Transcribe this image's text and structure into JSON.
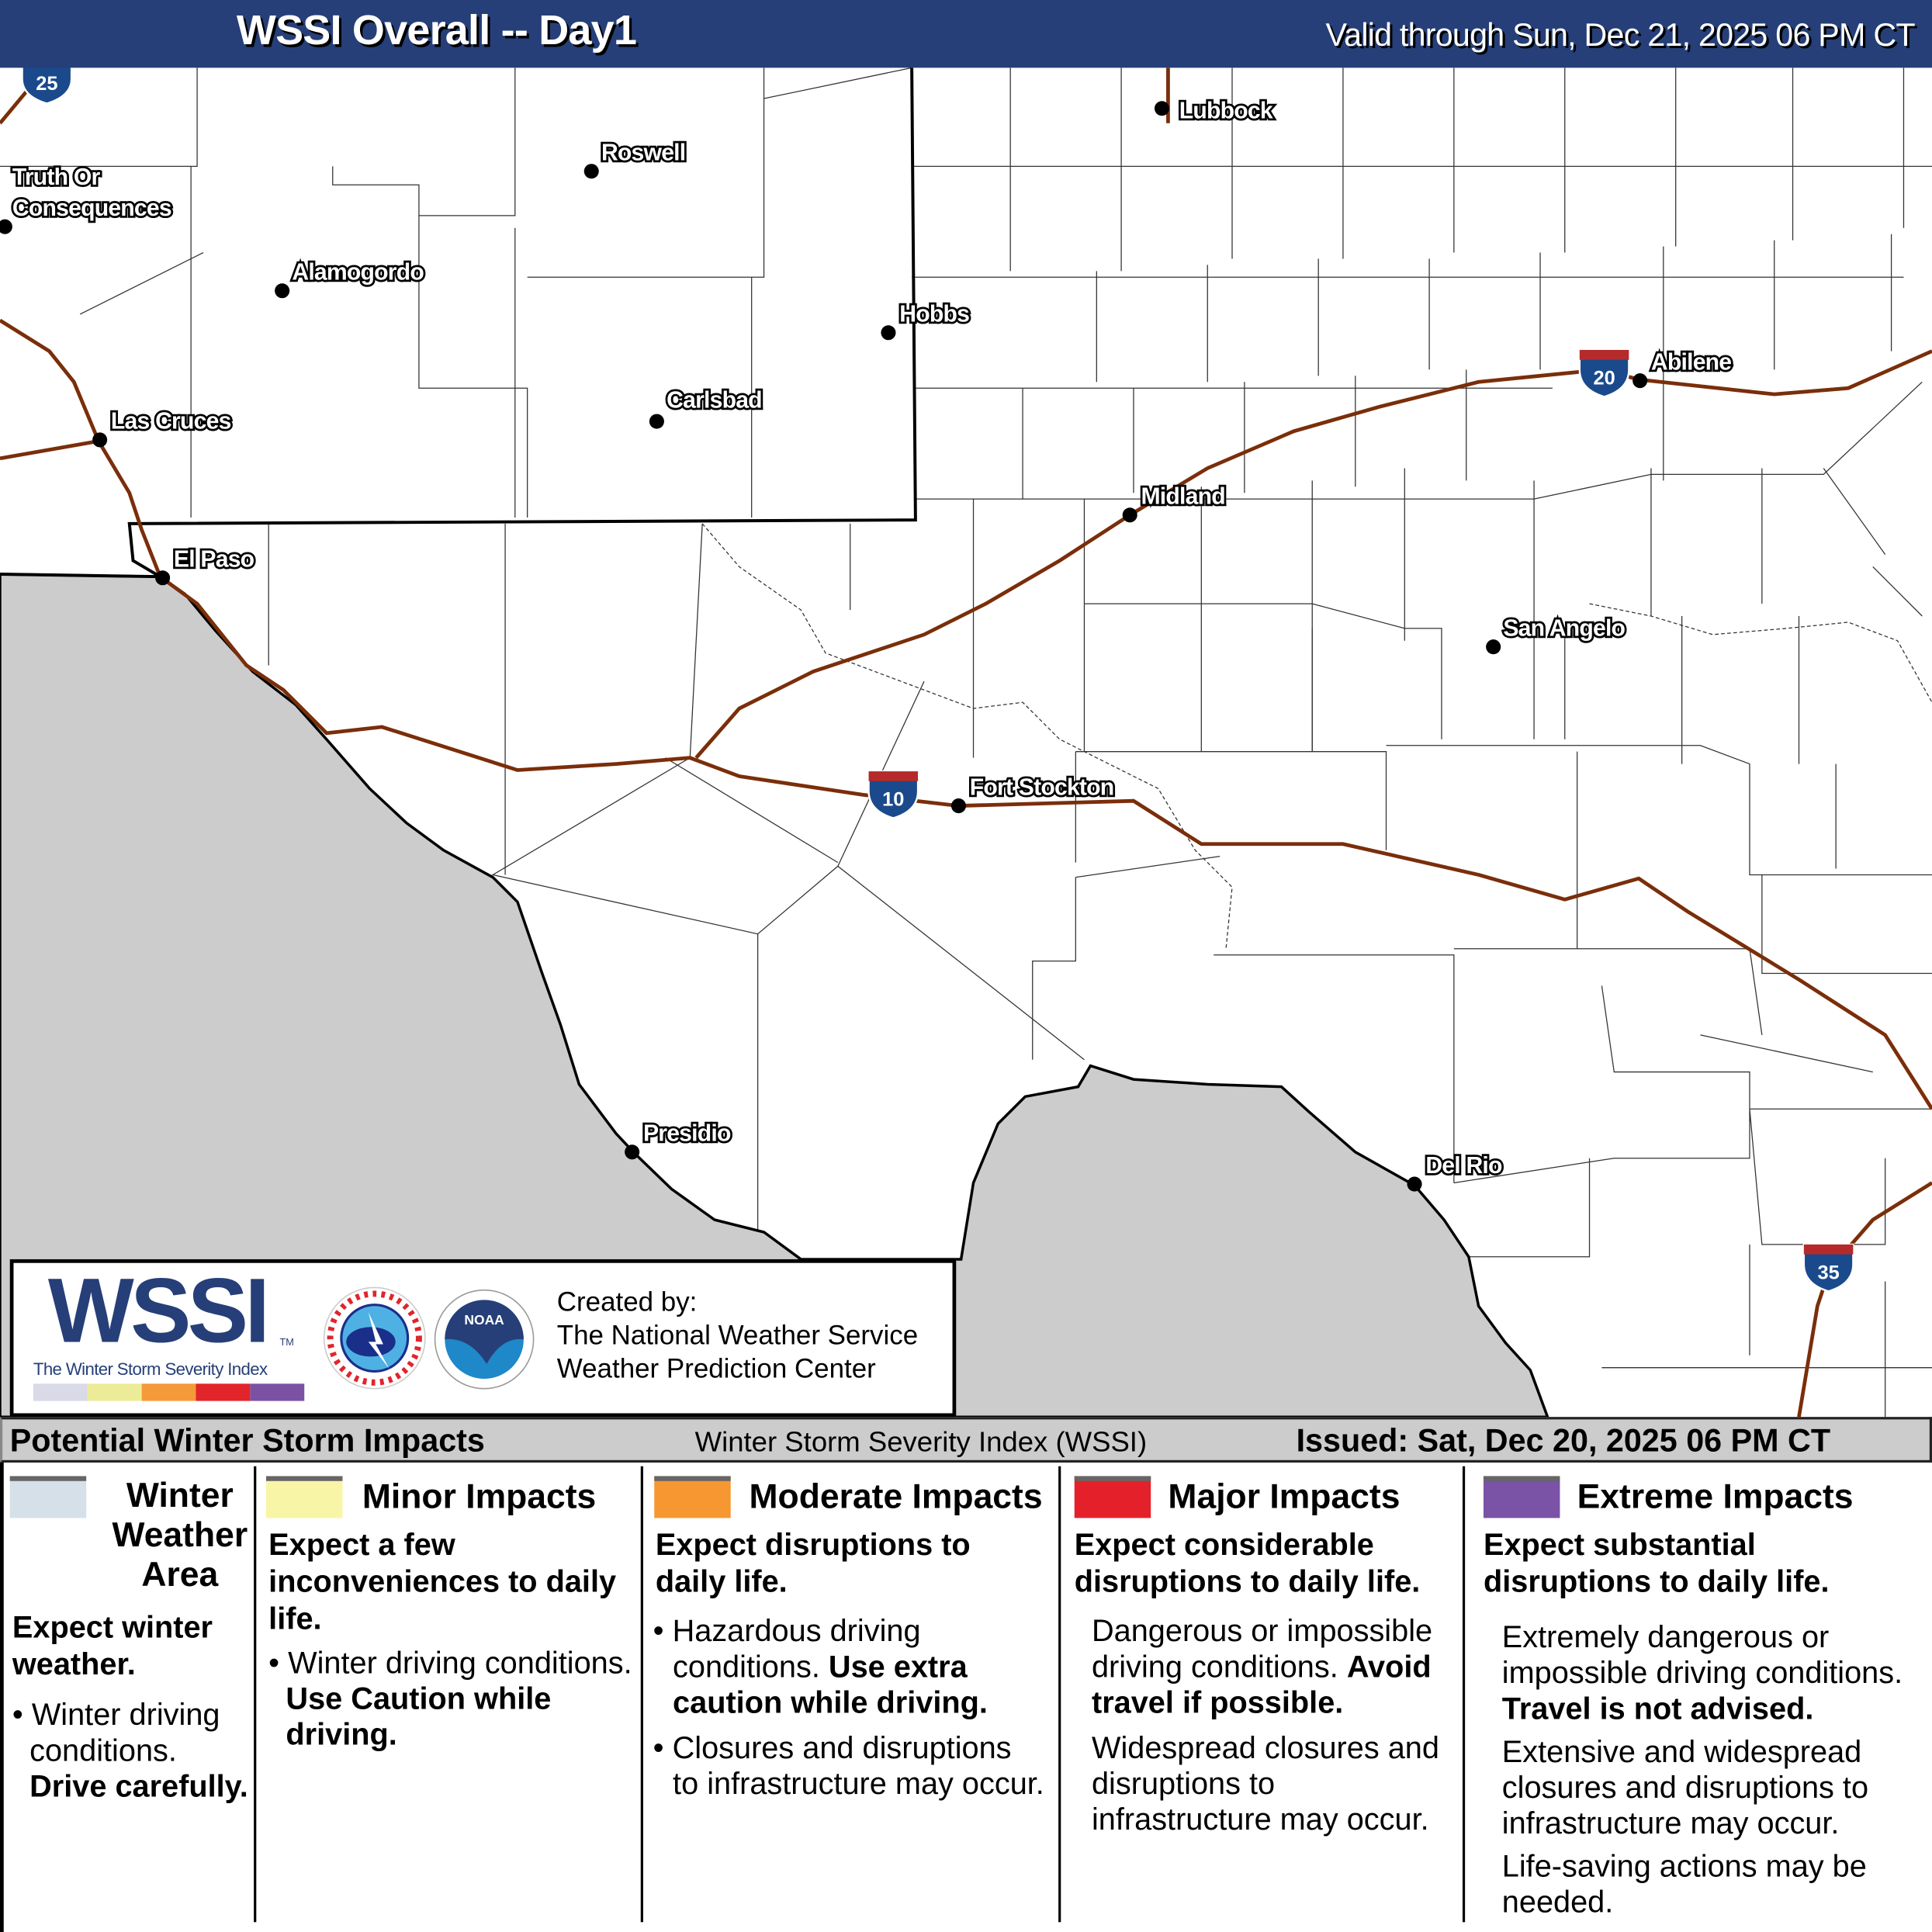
{
  "header": {
    "title": "WSSI Overall -- Day1",
    "valid": "Valid through Sun, Dec 21, 2025 06 PM CT"
  },
  "map": {
    "colors": {
      "mexico": "#cccccc",
      "road": "#7a2e0a",
      "shield_blue": "#1a4a8c",
      "shield_red": "#b52a2a"
    },
    "cities": [
      {
        "name": "Lubbock"
      },
      {
        "name": "Roswell"
      },
      {
        "name": "Truth Or"
      },
      {
        "name": "Consequences"
      },
      {
        "name": "Alamogordo"
      },
      {
        "name": "Hobbs"
      },
      {
        "name": "Abilene"
      },
      {
        "name": "Carlsbad"
      },
      {
        "name": "Las Cruces"
      },
      {
        "name": "Midland"
      },
      {
        "name": "El Paso"
      },
      {
        "name": "San Angelo"
      },
      {
        "name": "Fort Stockton"
      },
      {
        "name": "Presidio"
      },
      {
        "name": "Del Rio"
      }
    ],
    "shields": [
      {
        "number": "25"
      },
      {
        "number": "20"
      },
      {
        "number": "10"
      },
      {
        "number": "35"
      }
    ]
  },
  "logo": {
    "wssi": "WSSI",
    "tm": "TM",
    "subtitle": "The Winter Storm Severity Index",
    "bar_colors": [
      "#d9d9e8",
      "#ecec98",
      "#f59a38",
      "#e2242b",
      "#7b52a3"
    ],
    "created_by": "Created by:",
    "org1": "The National Weather Service",
    "org2": "Weather Prediction Center"
  },
  "legend": {
    "left": "Potential Winter Storm Impacts",
    "middle": "Winter Storm Severity Index (WSSI)",
    "right": "Issued: Sat, Dec 20, 2025 06 PM CT",
    "columns": [
      {
        "color": "#d5e0e8",
        "title": "Winter Weather Area",
        "head": "Expect winter weather.",
        "bullet1": "Winter driving conditions.",
        "bold1": "Drive carefully."
      },
      {
        "color": "#f9f5a6",
        "title": "Minor Impacts",
        "head": "Expect a few inconveniences to daily life.",
        "bullet1": "Winter driving conditions.",
        "bold1": "Use Caution while driving."
      },
      {
        "color": "#f69731",
        "title": "Moderate Impacts",
        "head": "Expect disruptions to daily life.",
        "bullet1": "Hazardous driving conditions.",
        "bold1": "Use extra caution while driving.",
        "bullet2": "Closures and disruptions to infrastructure may occur."
      },
      {
        "color": "#e4202a",
        "title": "Major Impacts",
        "head": "Expect considerable disruptions to daily life.",
        "bullet1": "Dangerous or impossible driving conditions.",
        "bold1": "Avoid travel if possible.",
        "bullet2": "Widespread closures and disruptions to infrastructure may occur."
      },
      {
        "color": "#7a52a6",
        "title": "Extreme Impacts",
        "head": "Expect substantial disruptions to daily life.",
        "bullet1": "Extremely dangerous or impossible driving conditions.",
        "bold1": "Travel is not advised.",
        "bullet2": "Extensive and widespread closures and disruptions to infrastructure may occur.",
        "bullet3": "Life-saving actions may be needed."
      }
    ]
  }
}
